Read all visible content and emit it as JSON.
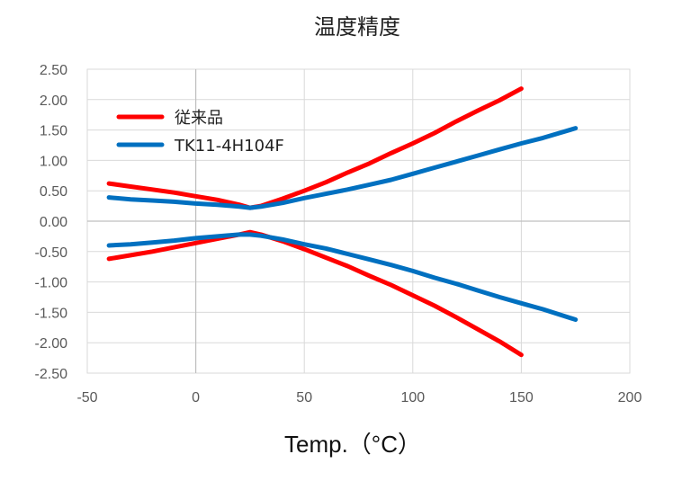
{
  "chart_data": {
    "type": "line",
    "title": "温度精度",
    "xlabel": "Temp.（°C）",
    "ylabel": "",
    "xlim": [
      -50,
      200
    ],
    "ylim": [
      -2.5,
      2.5
    ],
    "x_ticks": [
      "-50",
      "0",
      "50",
      "100",
      "150",
      "200"
    ],
    "y_ticks": [
      "2.50",
      "2.00",
      "1.50",
      "1.00",
      "0.50",
      "0.00",
      "-0.50",
      "-1.00",
      "-1.50",
      "-2.00",
      "-2.50"
    ],
    "grid": true,
    "legend_position": "top-left",
    "legend": [
      {
        "name": "従来品",
        "color": "#ff0000"
      },
      {
        "name": "TK11-4H104F",
        "color": "#0070c0"
      }
    ],
    "series": [
      {
        "name": "従来品",
        "color": "#ff0000",
        "band": "upper",
        "x": [
          -40,
          -30,
          -20,
          -10,
          0,
          10,
          20,
          25,
          30,
          40,
          50,
          60,
          70,
          80,
          90,
          100,
          110,
          120,
          130,
          140,
          150
        ],
        "y": [
          0.62,
          0.57,
          0.52,
          0.47,
          0.41,
          0.35,
          0.27,
          0.22,
          0.25,
          0.37,
          0.5,
          0.64,
          0.8,
          0.95,
          1.12,
          1.28,
          1.45,
          1.64,
          1.82,
          1.99,
          2.18
        ]
      },
      {
        "name": "従来品",
        "color": "#ff0000",
        "band": "lower",
        "x": [
          -40,
          -30,
          -20,
          -10,
          0,
          10,
          20,
          25,
          30,
          40,
          50,
          60,
          70,
          80,
          90,
          100,
          110,
          120,
          130,
          140,
          150
        ],
        "y": [
          -0.62,
          -0.56,
          -0.5,
          -0.43,
          -0.36,
          -0.29,
          -0.22,
          -0.18,
          -0.22,
          -0.33,
          -0.46,
          -0.6,
          -0.74,
          -0.9,
          -1.05,
          -1.22,
          -1.39,
          -1.58,
          -1.78,
          -1.98,
          -2.2
        ]
      },
      {
        "name": "TK11-4H104F",
        "color": "#0070c0",
        "band": "upper",
        "x": [
          -40,
          -30,
          -20,
          -10,
          0,
          10,
          20,
          25,
          30,
          40,
          50,
          60,
          70,
          80,
          90,
          100,
          110,
          120,
          130,
          140,
          150,
          160,
          175
        ],
        "y": [
          0.39,
          0.36,
          0.34,
          0.32,
          0.29,
          0.27,
          0.24,
          0.22,
          0.24,
          0.3,
          0.38,
          0.45,
          0.52,
          0.6,
          0.68,
          0.78,
          0.88,
          0.98,
          1.08,
          1.18,
          1.28,
          1.37,
          1.53
        ]
      },
      {
        "name": "TK11-4H104F",
        "color": "#0070c0",
        "band": "lower",
        "x": [
          -40,
          -30,
          -20,
          -10,
          0,
          10,
          20,
          25,
          30,
          40,
          50,
          60,
          70,
          80,
          90,
          100,
          110,
          120,
          130,
          140,
          150,
          160,
          175
        ],
        "y": [
          -0.4,
          -0.38,
          -0.35,
          -0.32,
          -0.28,
          -0.25,
          -0.22,
          -0.22,
          -0.24,
          -0.3,
          -0.38,
          -0.45,
          -0.54,
          -0.63,
          -0.72,
          -0.82,
          -0.93,
          -1.03,
          -1.14,
          -1.25,
          -1.35,
          -1.45,
          -1.62
        ]
      }
    ]
  }
}
